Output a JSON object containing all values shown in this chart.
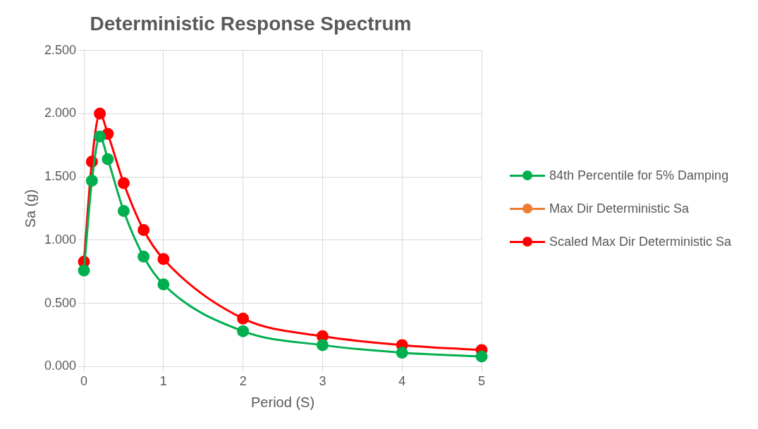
{
  "chart_data": {
    "type": "line",
    "title": "Deterministic Response Spectrum",
    "xlabel": "Period (S)",
    "ylabel": "Sa (g)",
    "x": [
      0,
      0.1,
      0.2,
      0.3,
      0.5,
      0.75,
      1,
      2,
      3,
      4,
      5
    ],
    "series": [
      {
        "name": "84th Percentile for 5% Damping",
        "color": "#00b050",
        "values": [
          0.76,
          1.47,
          1.82,
          1.64,
          1.23,
          0.87,
          0.65,
          0.28,
          0.17,
          0.11,
          0.08
        ]
      },
      {
        "name": "Max Dir Deterministic Sa",
        "color": "#ed7d31",
        "values": [
          null,
          null,
          null,
          null,
          null,
          null,
          null,
          null,
          null,
          null,
          null
        ]
      },
      {
        "name": "Scaled Max Dir Deterministic Sa",
        "color": "#ff0000",
        "values": [
          0.83,
          1.62,
          2.0,
          1.84,
          1.45,
          1.08,
          0.85,
          0.38,
          0.24,
          0.17,
          0.13
        ]
      }
    ],
    "xlim": [
      0,
      5
    ],
    "xticks": [
      0,
      1,
      2,
      3,
      4,
      5
    ],
    "ylim": [
      0,
      2.5
    ],
    "yticks": [
      {
        "value": 0,
        "label": "0.000"
      },
      {
        "value": 0.5,
        "label": "0.500"
      },
      {
        "value": 1,
        "label": "1.000"
      },
      {
        "value": 1.5,
        "label": "1.500"
      },
      {
        "value": 2,
        "label": "2.000"
      },
      {
        "value": 2.5,
        "label": "2.500"
      }
    ],
    "grid": true,
    "legend": "right",
    "marker": "circle",
    "line_style": "solid"
  }
}
